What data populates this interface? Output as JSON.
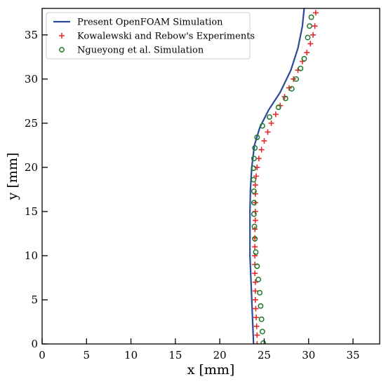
{
  "chart_data": {
    "type": "line",
    "xlabel": "x [mm]",
    "ylabel": "y [mm]",
    "xlim": [
      0,
      38
    ],
    "ylim": [
      0,
      38
    ],
    "xticks": [
      0,
      5,
      10,
      15,
      20,
      25,
      30,
      35
    ],
    "yticks": [
      0,
      5,
      10,
      15,
      20,
      25,
      30,
      35
    ],
    "grid": false,
    "legend_position": "top-left",
    "series": [
      {
        "name": "Present OpenFOAM Simulation",
        "style": "line",
        "color": "#2b4a9a",
        "x": [
          23.8,
          23.7,
          23.6,
          23.5,
          23.4,
          23.4,
          23.4,
          23.45,
          23.6,
          23.9,
          24.5,
          25.5,
          26.8,
          28.0,
          28.8,
          29.3,
          29.5
        ],
        "y": [
          0,
          2.5,
          5,
          7.5,
          10,
          12.5,
          15,
          17.5,
          20,
          22.5,
          24.5,
          26.5,
          28.5,
          31,
          33.5,
          36,
          38
        ]
      },
      {
        "name": "Kowalewski and Rebow's Experiments",
        "style": "marker-plus",
        "color": "#e8292b",
        "x": [
          24.2,
          24.2,
          24.15,
          24.1,
          24.05,
          24.0,
          24.0,
          24.0,
          23.95,
          23.95,
          23.95,
          23.95,
          23.95,
          23.95,
          24.0,
          24.0,
          24.0,
          24.0,
          24.0,
          24.1,
          24.2,
          24.4,
          24.7,
          25.0,
          25.4,
          25.8,
          26.3,
          26.8,
          27.3,
          27.8,
          28.3,
          28.8,
          29.3,
          29.8,
          30.2,
          30.5,
          30.7,
          30.8
        ],
        "y": [
          0,
          1,
          2,
          3,
          4,
          5,
          6,
          7,
          8,
          9,
          10,
          11,
          12,
          13,
          14,
          15,
          16,
          17,
          18,
          19,
          20,
          21,
          22,
          23,
          24,
          25,
          26,
          27,
          28,
          29,
          30,
          31,
          32,
          33,
          34,
          35,
          36,
          37.5
        ]
      },
      {
        "name": "Ngueyong et al. Simulation",
        "style": "marker-circle",
        "color": "#1e7a2e",
        "x": [
          24.9,
          24.8,
          24.7,
          24.6,
          24.5,
          24.35,
          24.2,
          24.05,
          23.95,
          23.9,
          23.85,
          23.85,
          23.85,
          23.8,
          23.8,
          23.85,
          23.95,
          24.2,
          24.8,
          25.6,
          26.6,
          27.4,
          28.1,
          28.6,
          29.1,
          29.5,
          29.9,
          30.1,
          30.3
        ],
        "y": [
          0.1,
          1.4,
          2.8,
          4.3,
          5.8,
          7.3,
          8.8,
          10.4,
          11.9,
          13.3,
          14.7,
          16.0,
          17.3,
          18.6,
          19.9,
          21.0,
          22.2,
          23.4,
          24.7,
          25.7,
          26.8,
          27.8,
          28.9,
          30.0,
          31.2,
          32.3,
          34.7,
          36.0,
          37.0
        ]
      }
    ]
  }
}
